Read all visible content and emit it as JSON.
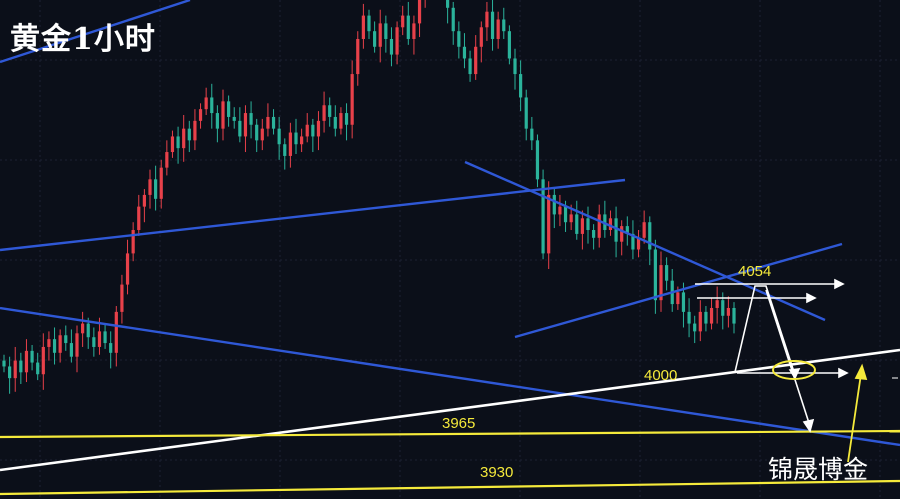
{
  "title": "黄金1小时",
  "watermark": "锦晟博金",
  "colors": {
    "background": "#0b0f19",
    "up": "#e8414a",
    "down": "#2bb39b",
    "trend": "#2f58d6",
    "support": "#ffffff",
    "level": "#f5ea3b"
  },
  "chart_data": {
    "type": "candlestick",
    "title": "黄金1小时",
    "annotations": [
      {
        "text": "4054",
        "price": 4054
      },
      {
        "text": "4000",
        "price": 4000
      },
      {
        "text": "3965",
        "price": 3965
      },
      {
        "text": "3930",
        "price": 3930
      }
    ],
    "horizontal_levels": [
      3965,
      3930
    ],
    "ylim": [
      3914,
      4170
    ],
    "grid": true,
    "candles_close": [
      3982,
      3976,
      3985,
      3979,
      3990,
      3984,
      3978,
      3992,
      3996,
      3989,
      3998,
      3994,
      3987,
      3999,
      4004,
      3997,
      3992,
      4000,
      3994,
      3989,
      4010,
      4024,
      4040,
      4052,
      4064,
      4070,
      4078,
      4068,
      4084,
      4092,
      4100,
      4094,
      4104,
      4098,
      4108,
      4114,
      4120,
      4112,
      4104,
      4118,
      4110,
      4108,
      4100,
      4112,
      4106,
      4098,
      4104,
      4110,
      4104,
      4096,
      4090,
      4102,
      4096,
      4100,
      4106,
      4100,
      4108,
      4116,
      4110,
      4104,
      4112,
      4106,
      4132,
      4150,
      4162,
      4154,
      4146,
      4158,
      4150,
      4142,
      4156,
      4162,
      4150,
      4158,
      4172,
      4180,
      4186,
      4176,
      4180,
      4166,
      4154,
      4146,
      4140,
      4132,
      4146,
      4156,
      4164,
      4150,
      4160,
      4154,
      4140,
      4132,
      4120,
      4104,
      4098,
      4078,
      4040,
      4070,
      4060,
      4064,
      4056,
      4060,
      4050,
      4058,
      4052,
      4048,
      4060,
      4052,
      4058,
      4046,
      4054,
      4050,
      4042,
      4048,
      4056,
      4042,
      4016,
      4034,
      4026,
      4014,
      4020,
      4010,
      4004,
      4000,
      4010,
      4004,
      4012,
      4016,
      4008,
      4012,
      4004
    ]
  }
}
